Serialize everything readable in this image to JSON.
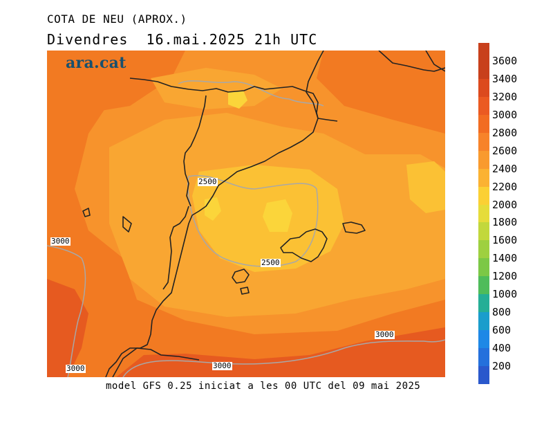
{
  "header": {
    "title": "COTA DE NEU (APROX.)",
    "subtitle": "Divendres  16.mai.2025 21h UTC"
  },
  "logo": {
    "text": "ara.cat",
    "color": "#17506e"
  },
  "footer": {
    "text": "model GFS 0.25 iniciat a les 00 UTC del 09 mai 2025"
  },
  "colorbar": {
    "labels": [
      "3600",
      "3400",
      "3200",
      "3000",
      "2800",
      "2600",
      "2400",
      "2200",
      "2000",
      "1800",
      "1600",
      "1400",
      "1200",
      "1000",
      "800",
      "600",
      "400",
      "200"
    ],
    "colors": [
      "#c8401c",
      "#dc4a1e",
      "#eb5a22",
      "#f26c22",
      "#f7832a",
      "#f99a2e",
      "#fbb232",
      "#fbd034",
      "#e6dc3a",
      "#c2d83c",
      "#9ed040",
      "#7cc846",
      "#4fbc5a",
      "#25ae96",
      "#1a9dcc",
      "#1e88e6",
      "#2470dc",
      "#2a58cc"
    ]
  },
  "map": {
    "contour_labels": [
      "2500",
      "2500",
      "3000",
      "3000",
      "3000",
      "3000"
    ],
    "palette": {
      "orange_dark": "#f27a22",
      "orange": "#f7932c",
      "orange_light": "#f9a632",
      "yellow": "#fbc134",
      "yellow_bright": "#fbd53a",
      "red": "#e65a20",
      "coast": "#222222",
      "contour": "#a8a8a8"
    }
  }
}
